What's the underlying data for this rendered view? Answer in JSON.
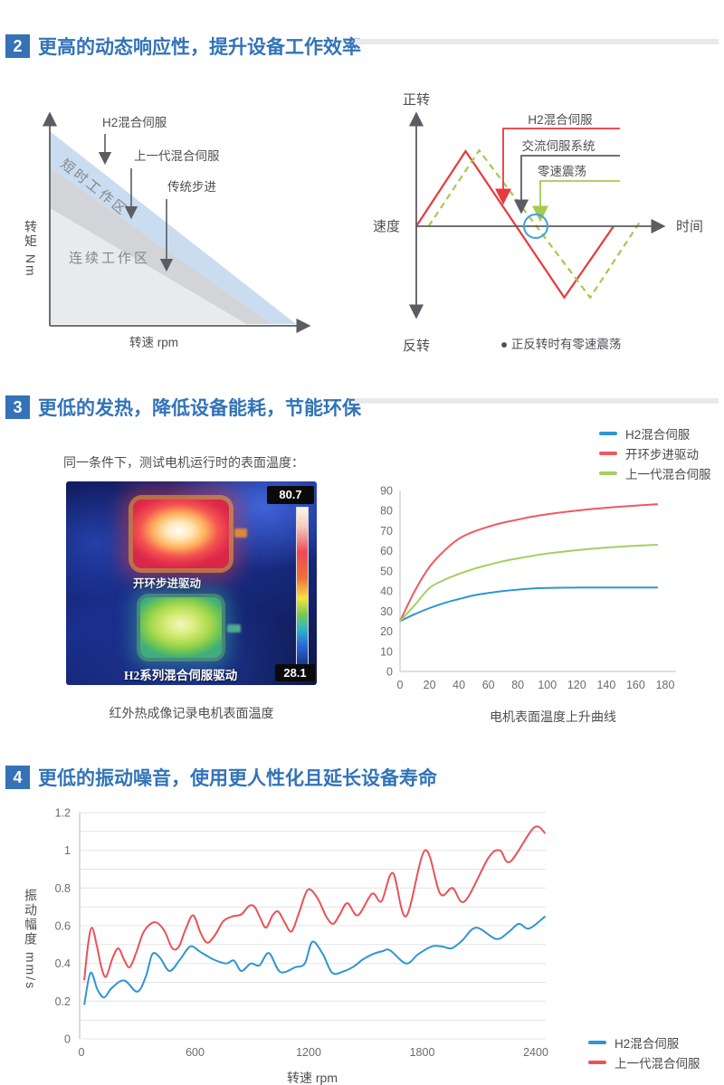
{
  "theme": {
    "accent": "#3572b7",
    "title_blue": "#3273b8",
    "rule_gray": "#e9e9e9",
    "axis_gray": "#5b5d62"
  },
  "sections": [
    {
      "num": "2",
      "title": "更高的动态响应性，提升设备工作效率"
    },
    {
      "num": "3",
      "title": "更低的发热，降低设备能耗，节能环保"
    },
    {
      "num": "4",
      "title": "更低的振动噪音，使用更人性化且延长设备寿命"
    }
  ],
  "thermal": {
    "caption_top": "同一条件下，测试电机运行时的表面温度：",
    "label_hot": "开环步进驱动",
    "label_cool": "H2系列混合伺服驱动",
    "scale_max": "80.7",
    "scale_min": "28.1",
    "caption_bottom": "红外热成像记录电机表面温度"
  },
  "chart_data": [
    {
      "type": "area",
      "xlabel": "转速 rpm",
      "ylabel": "转矩 Nm",
      "bands": [
        {
          "label": "短时工作区",
          "color": "#c9dcf0"
        },
        {
          "label": "连续工作区",
          "color": "#e9eaed"
        }
      ],
      "band_mid_color": "#d2d4d7",
      "annotations": [
        {
          "label": "H2混合伺服",
          "color": "#e60012"
        },
        {
          "label": "上一代混合伺服",
          "color": "#4d4f54"
        },
        {
          "label": "传统步进",
          "color": "#4d4f54"
        }
      ]
    },
    {
      "type": "line",
      "y_top": "正转",
      "y_bottom": "反转",
      "y_axis": "速度",
      "x_axis": "时间",
      "note": "● 正反转时有零速震荡",
      "callouts": [
        {
          "label": "H2混合伺服",
          "color": "#e8393f"
        },
        {
          "label": "交流伺服系统",
          "color": "#5b5d62"
        },
        {
          "label": "零速震荡",
          "color": "#a6c94e"
        }
      ],
      "series": [
        {
          "name": "H2混合伺服",
          "color": "#e8393f",
          "style": "solid",
          "points": [
            [
              0,
              0
            ],
            [
              2,
              1
            ],
            [
              6,
              -0.95
            ],
            [
              8,
              0
            ]
          ]
        },
        {
          "name": "交流伺服系统",
          "color": "#a6c94e",
          "style": "dashed",
          "points": [
            [
              0.5,
              0
            ],
            [
              2.55,
              1.01
            ],
            [
              7.05,
              -0.95
            ],
            [
              9.05,
              0.05
            ]
          ]
        }
      ],
      "zero_circle": {
        "color": "#39a3da"
      }
    },
    {
      "type": "line",
      "title": "电机表面温度上升曲线",
      "xlim": [
        0,
        187
      ],
      "ylim": [
        0,
        90
      ],
      "x_ticks": [
        0,
        20,
        40,
        60,
        80,
        100,
        120,
        140,
        160,
        180
      ],
      "y_ticks": [
        0,
        10,
        20,
        30,
        40,
        50,
        60,
        70,
        80,
        90
      ],
      "legend_position": "top-right",
      "series": [
        {
          "name": "H2混合伺服",
          "color": "#2e96d2",
          "points": [
            [
              0,
              25
            ],
            [
              10,
              28.5
            ],
            [
              20,
              31.5
            ],
            [
              30,
              34
            ],
            [
              40,
              36
            ],
            [
              50,
              37.8
            ],
            [
              60,
              39
            ],
            [
              70,
              40
            ],
            [
              80,
              40.7
            ],
            [
              90,
              41.2
            ],
            [
              100,
              41.5
            ],
            [
              120,
              41.7
            ],
            [
              140,
              41.7
            ],
            [
              160,
              41.7
            ],
            [
              175,
              41.7
            ]
          ]
        },
        {
          "name": "开环步进驱动",
          "color": "#ee5a5e",
          "points": [
            [
              0,
              25
            ],
            [
              10,
              40
            ],
            [
              20,
              52
            ],
            [
              30,
              60
            ],
            [
              40,
              66
            ],
            [
              50,
              69.5
            ],
            [
              60,
              72
            ],
            [
              70,
              74
            ],
            [
              80,
              75.5
            ],
            [
              90,
              77
            ],
            [
              100,
              78.2
            ],
            [
              120,
              80
            ],
            [
              140,
              81.4
            ],
            [
              160,
              82.5
            ],
            [
              175,
              83.2
            ]
          ]
        },
        {
          "name": "上一代混合伺服",
          "color": "#a5cf5e",
          "points": [
            [
              0,
              25
            ],
            [
              10,
              33
            ],
            [
              20,
              41.5
            ],
            [
              30,
              45.5
            ],
            [
              40,
              48.5
            ],
            [
              50,
              51
            ],
            [
              60,
              53
            ],
            [
              70,
              54.8
            ],
            [
              80,
              56.2
            ],
            [
              90,
              57.5
            ],
            [
              100,
              58.7
            ],
            [
              120,
              60.3
            ],
            [
              140,
              61.6
            ],
            [
              160,
              62.5
            ],
            [
              175,
              63
            ]
          ]
        }
      ]
    },
    {
      "type": "line",
      "xlabel": "转速 rpm",
      "ylabel": "振动幅度 mm/s",
      "xlim": [
        0,
        2450
      ],
      "ylim": [
        0,
        1.2
      ],
      "x_ticks": [
        0,
        600,
        1200,
        1800,
        2400
      ],
      "y_ticks": [
        0,
        0.2,
        0.4,
        0.6,
        0.8,
        1,
        1.2
      ],
      "grid_step": 0.1,
      "legend_position": "bottom-right",
      "series": [
        {
          "name": "H2混合伺服",
          "color": "#2e96d2",
          "points": [
            [
              15,
              0.18
            ],
            [
              48,
              0.35
            ],
            [
              85,
              0.26
            ],
            [
              120,
              0.22
            ],
            [
              160,
              0.27
            ],
            [
              225,
              0.31
            ],
            [
              295,
              0.25
            ],
            [
              340,
              0.33
            ],
            [
              375,
              0.45
            ],
            [
              415,
              0.43
            ],
            [
              465,
              0.36
            ],
            [
              520,
              0.42
            ],
            [
              575,
              0.49
            ],
            [
              630,
              0.46
            ],
            [
              700,
              0.42
            ],
            [
              765,
              0.4
            ],
            [
              805,
              0.415
            ],
            [
              845,
              0.36
            ],
            [
              895,
              0.4
            ],
            [
              940,
              0.39
            ],
            [
              990,
              0.455
            ],
            [
              1050,
              0.355
            ],
            [
              1130,
              0.38
            ],
            [
              1180,
              0.4
            ],
            [
              1220,
              0.515
            ],
            [
              1275,
              0.45
            ],
            [
              1325,
              0.35
            ],
            [
              1390,
              0.36
            ],
            [
              1440,
              0.385
            ],
            [
              1485,
              0.42
            ],
            [
              1540,
              0.45
            ],
            [
              1590,
              0.465
            ],
            [
              1630,
              0.47
            ],
            [
              1715,
              0.4
            ],
            [
              1780,
              0.45
            ],
            [
              1850,
              0.49
            ],
            [
              1905,
              0.49
            ],
            [
              1955,
              0.48
            ],
            [
              2010,
              0.52
            ],
            [
              2085,
              0.59
            ],
            [
              2190,
              0.53
            ],
            [
              2255,
              0.565
            ],
            [
              2310,
              0.61
            ],
            [
              2365,
              0.585
            ],
            [
              2450,
              0.65
            ]
          ]
        },
        {
          "name": "上一代混合伺服",
          "color": "#ea5256",
          "points": [
            [
              15,
              0.31
            ],
            [
              35,
              0.5
            ],
            [
              55,
              0.59
            ],
            [
              80,
              0.5
            ],
            [
              105,
              0.38
            ],
            [
              130,
              0.33
            ],
            [
              165,
              0.43
            ],
            [
              195,
              0.48
            ],
            [
              225,
              0.42
            ],
            [
              255,
              0.38
            ],
            [
              290,
              0.46
            ],
            [
              325,
              0.56
            ],
            [
              365,
              0.61
            ],
            [
              400,
              0.615
            ],
            [
              440,
              0.57
            ],
            [
              480,
              0.48
            ],
            [
              515,
              0.49
            ],
            [
              550,
              0.58
            ],
            [
              590,
              0.655
            ],
            [
              630,
              0.56
            ],
            [
              665,
              0.51
            ],
            [
              705,
              0.55
            ],
            [
              750,
              0.625
            ],
            [
              800,
              0.65
            ],
            [
              845,
              0.66
            ],
            [
              885,
              0.705
            ],
            [
              915,
              0.7
            ],
            [
              945,
              0.64
            ],
            [
              975,
              0.59
            ],
            [
              1010,
              0.655
            ],
            [
              1040,
              0.675
            ],
            [
              1075,
              0.615
            ],
            [
              1110,
              0.57
            ],
            [
              1150,
              0.67
            ],
            [
              1195,
              0.79
            ],
            [
              1245,
              0.75
            ],
            [
              1295,
              0.645
            ],
            [
              1330,
              0.61
            ],
            [
              1365,
              0.66
            ],
            [
              1405,
              0.72
            ],
            [
              1460,
              0.655
            ],
            [
              1535,
              0.77
            ],
            [
              1585,
              0.73
            ],
            [
              1645,
              0.88
            ],
            [
              1715,
              0.65
            ],
            [
              1815,
              1.0
            ],
            [
              1895,
              0.77
            ],
            [
              1960,
              0.8
            ],
            [
              2025,
              0.73
            ],
            [
              2150,
              0.96
            ],
            [
              2210,
              1.0
            ],
            [
              2265,
              0.94
            ],
            [
              2390,
              1.12
            ],
            [
              2450,
              1.09
            ]
          ]
        }
      ]
    }
  ]
}
